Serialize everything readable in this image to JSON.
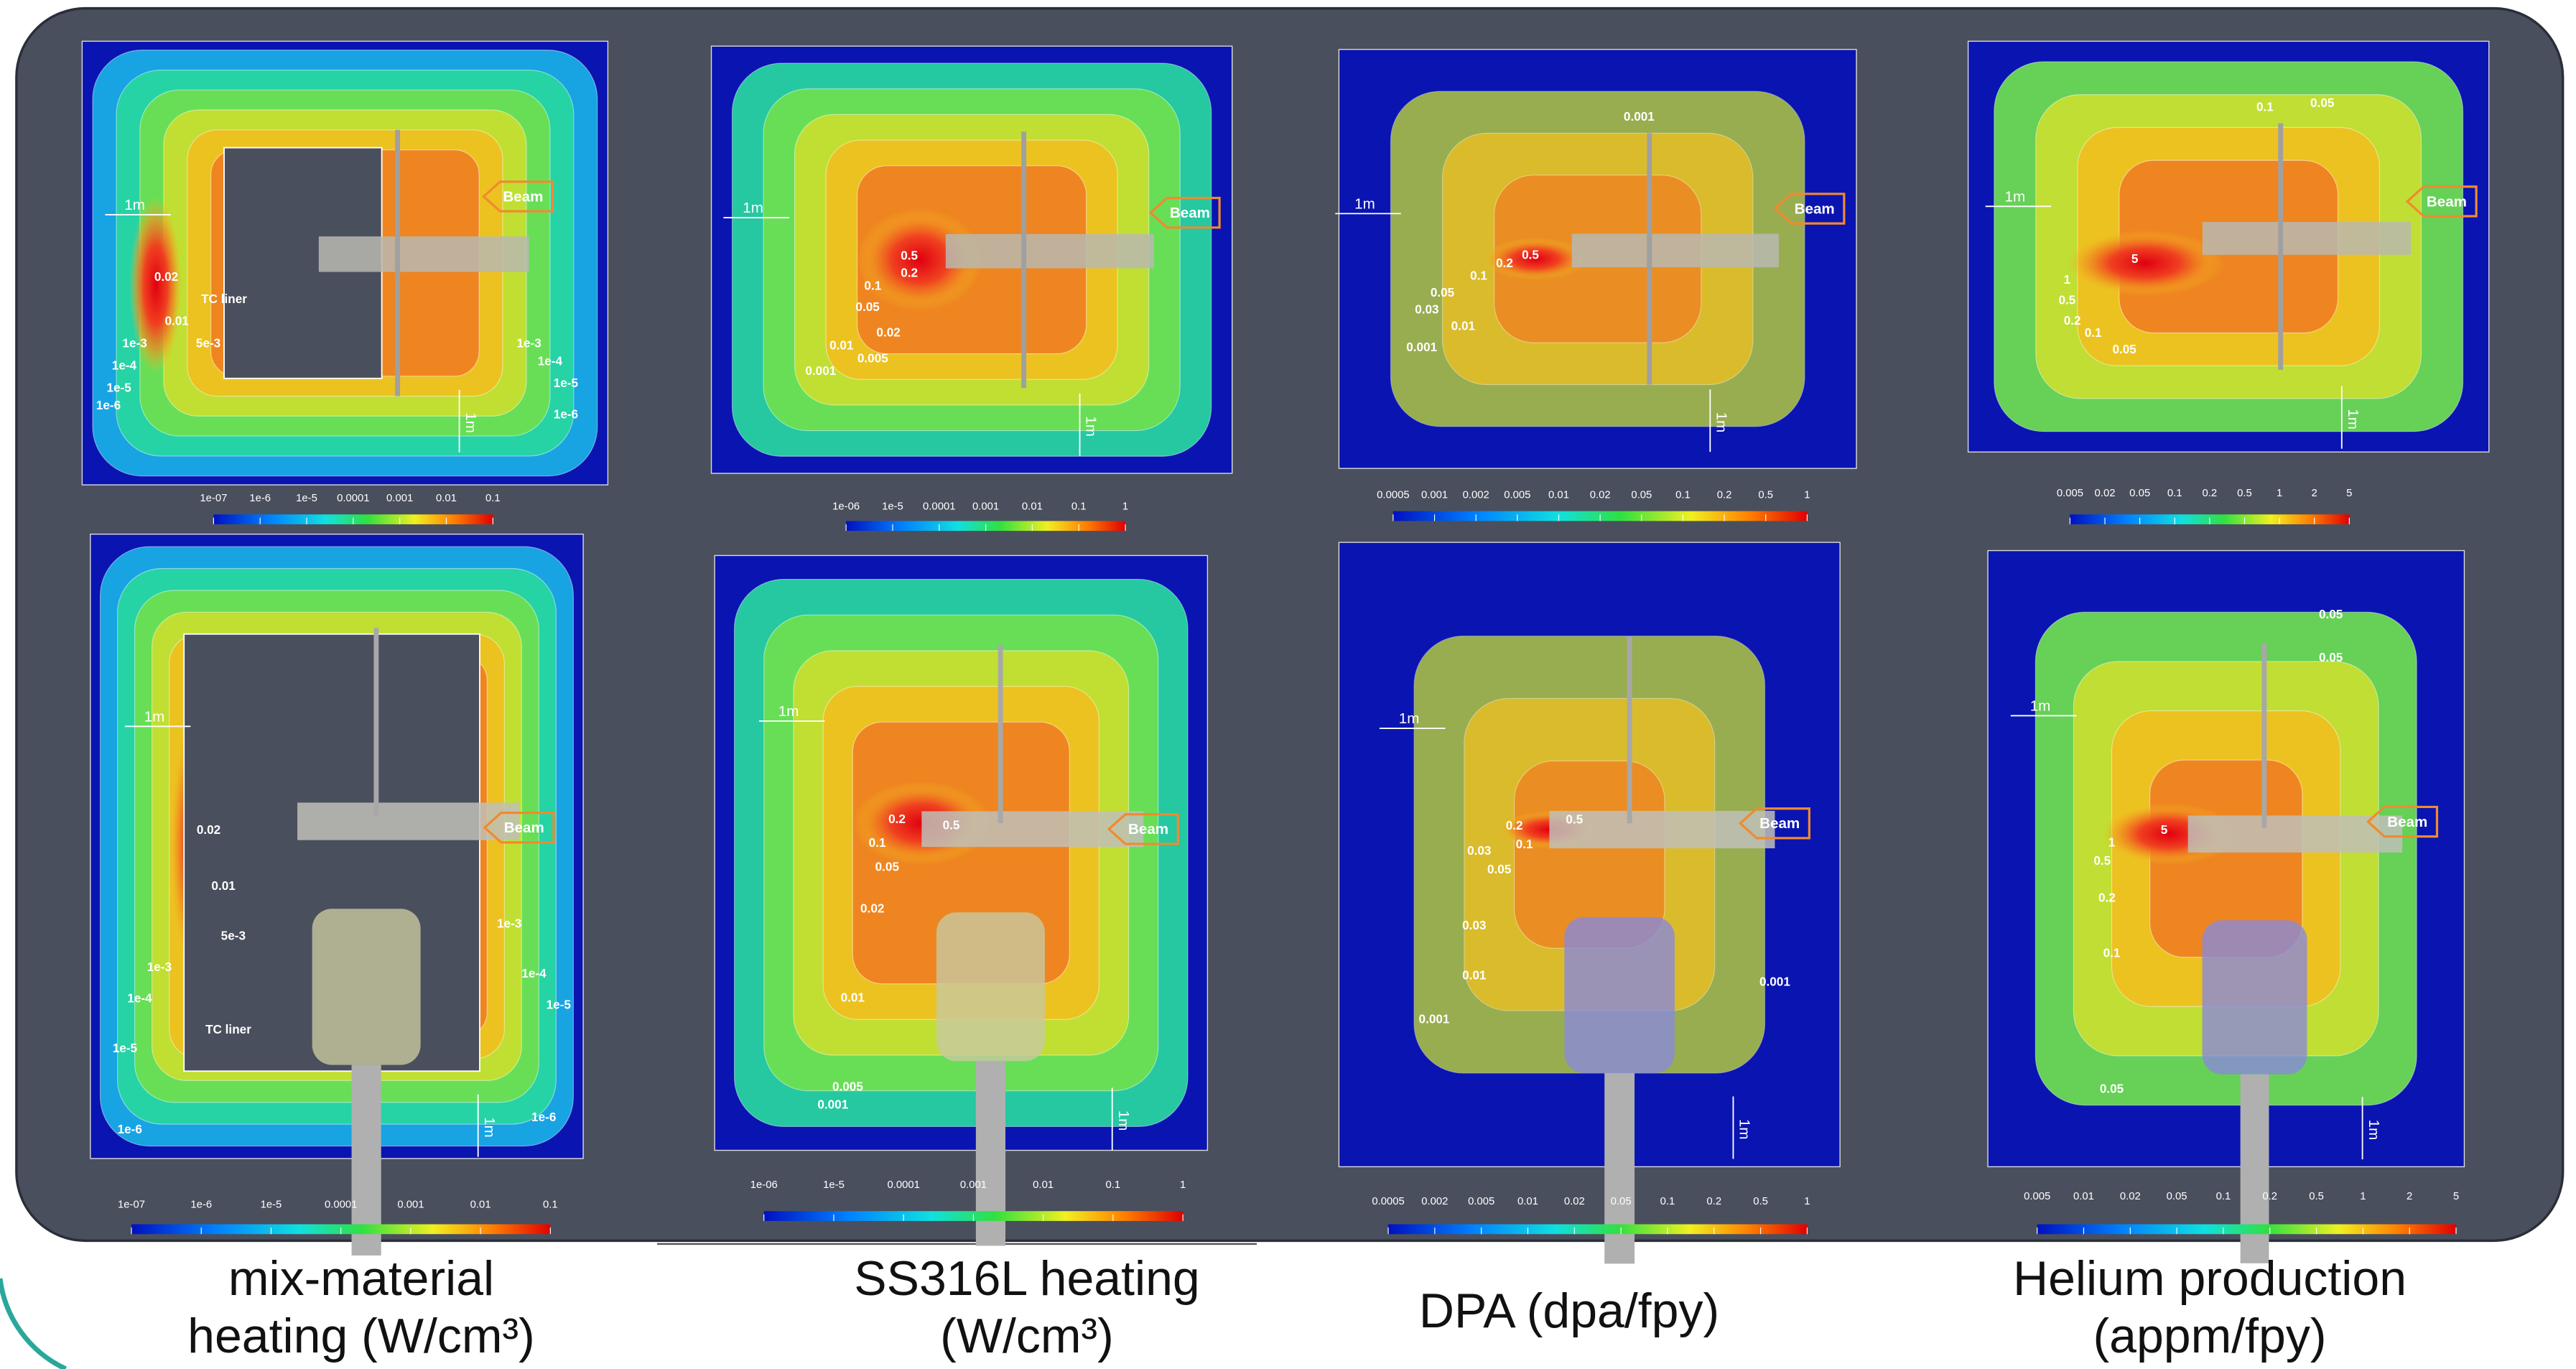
{
  "panels": [
    {
      "caption": "mix-material heating (W/cm³)",
      "views": [
        {
          "colorbar_labels": [
            "1e-07",
            "1e-6",
            "1e-5",
            "0.0001",
            "0.001",
            "0.01",
            "0.1"
          ],
          "contour_labels": [
            "0.02",
            "TC liner",
            "0.01",
            "5e-3",
            "1e-3",
            "1e-4",
            "1e-5",
            "1e-6",
            "1e-3",
            "1e-4",
            "1e-5",
            "1e-6",
            "1m",
            "Beam",
            "1m"
          ]
        },
        {
          "colorbar_labels": [
            "1e-07",
            "1e-6",
            "1e-5",
            "0.0001",
            "0.001",
            "0.01",
            "0.1"
          ],
          "contour_labels": [
            "0.02",
            "0.01",
            "5e-3",
            "1e-3",
            "1e-4",
            "1e-5",
            "TC liner",
            "1e-6",
            "1e-3",
            "1e-4",
            "1e-5",
            "1e-6",
            "1m",
            "Beam",
            "1m"
          ]
        }
      ]
    },
    {
      "caption": "SS316L heating (W/cm³)",
      "views": [
        {
          "colorbar_labels": [
            "1e-06",
            "1e-5",
            "0.0001",
            "0.001",
            "0.01",
            "0.1",
            "1"
          ],
          "contour_labels": [
            "0.5",
            "0.2",
            "0.1",
            "0.05",
            "0.02",
            "0.01",
            "0.005",
            "0.001",
            "1m",
            "Beam",
            "1m"
          ]
        },
        {
          "colorbar_labels": [
            "1e-06",
            "1e-5",
            "0.0001",
            "0.001",
            "0.01",
            "0.1",
            "1"
          ],
          "contour_labels": [
            "0.2",
            "0.5",
            "0.1",
            "0.05",
            "0.02",
            "0.01",
            "0.005",
            "0.001",
            "1m",
            "Beam",
            "1m"
          ]
        }
      ]
    },
    {
      "caption": "DPA (dpa/fpy)",
      "views": [
        {
          "colorbar_labels": [
            "0.0005",
            "0.001",
            "0.002",
            "0.005",
            "0.01",
            "0.02",
            "0.05",
            "0.1",
            "0.2",
            "0.5",
            "1"
          ],
          "contour_labels": [
            "0.001",
            "0.5",
            "0.2",
            "0.1",
            "0.05",
            "0.03",
            "0.01",
            "0.001",
            "1m",
            "Beam",
            "1m"
          ]
        },
        {
          "colorbar_labels": [
            "0.0005",
            "0.002",
            "0.005",
            "0.01",
            "0.02",
            "0.05",
            "0.1",
            "0.2",
            "0.5",
            "1"
          ],
          "contour_labels": [
            "0.2",
            "0.5",
            "0.03",
            "0.1",
            "0.05",
            "0.03",
            "0.01",
            "0.001",
            "0.001",
            "1m",
            "Beam",
            "1m"
          ]
        }
      ]
    },
    {
      "caption": "Helium production (appm/fpy)",
      "views": [
        {
          "colorbar_labels": [
            "0.005",
            "0.02",
            "0.05",
            "0.1",
            "0.2",
            "0.5",
            "1",
            "2",
            "5"
          ],
          "contour_labels": [
            "0.1",
            "0.05",
            "5",
            "1",
            "0.5",
            "0.2",
            "0.1",
            "0.05",
            "1m",
            "Beam",
            "1m"
          ]
        },
        {
          "colorbar_labels": [
            "0.005",
            "0.01",
            "0.02",
            "0.05",
            "0.1",
            "0.2",
            "0.5",
            "1",
            "2",
            "5"
          ],
          "contour_labels": [
            "0.05",
            "0.05",
            "5",
            "1",
            "0.5",
            "0.2",
            "0.1",
            "0.05",
            "1m",
            "Beam",
            "1m"
          ]
        }
      ]
    }
  ]
}
